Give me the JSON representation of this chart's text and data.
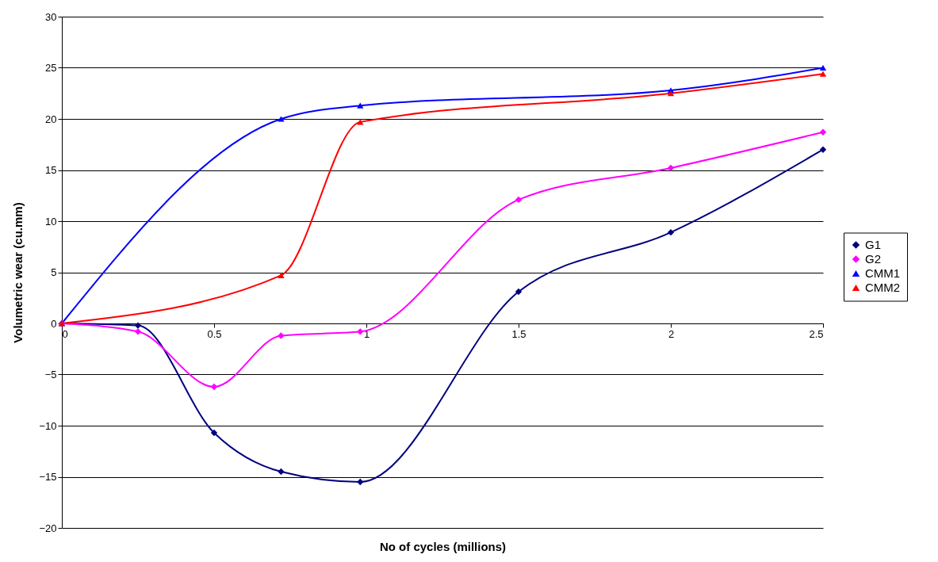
{
  "chart_data": {
    "type": "line",
    "xlabel": "No of cycles (millions)",
    "ylabel": "Volumetric wear (cu.mm)",
    "xlim": [
      0,
      2.5
    ],
    "xticks": [
      0,
      0.5,
      1,
      1.5,
      2,
      2.5
    ],
    "ylim": [
      -20,
      30
    ],
    "yticks": [
      -20,
      -15,
      -10,
      -5,
      0,
      5,
      10,
      15,
      20,
      25,
      30
    ],
    "grid": "y",
    "legend": "right",
    "series": [
      {
        "name": "G1",
        "color": "#000080",
        "marker": "diamond",
        "x": [
          0,
          0.25,
          0.5,
          0.72,
          0.98,
          1.5,
          2,
          2.5
        ],
        "values": [
          0,
          -0.2,
          -10.7,
          -14.5,
          -15.5,
          3.1,
          8.9,
          17
        ]
      },
      {
        "name": "G2",
        "color": "#ff00ff",
        "marker": "diamond",
        "x": [
          0,
          0.25,
          0.5,
          0.72,
          0.98,
          1.5,
          2,
          2.5
        ],
        "values": [
          0,
          -0.8,
          -6.2,
          -1.2,
          -0.8,
          12.1,
          15.2,
          18.7
        ]
      },
      {
        "name": "CMM1",
        "color": "#0000ff",
        "marker": "triangle",
        "x": [
          0,
          0.72,
          0.98,
          2,
          2.5
        ],
        "values": [
          0,
          20,
          21.3,
          22.8,
          25
        ]
      },
      {
        "name": "CMM2",
        "color": "#ff0000",
        "marker": "triangle",
        "x": [
          0,
          0.72,
          0.98,
          2,
          2.5
        ],
        "values": [
          0,
          4.7,
          19.7,
          22.5,
          24.4
        ]
      }
    ]
  }
}
